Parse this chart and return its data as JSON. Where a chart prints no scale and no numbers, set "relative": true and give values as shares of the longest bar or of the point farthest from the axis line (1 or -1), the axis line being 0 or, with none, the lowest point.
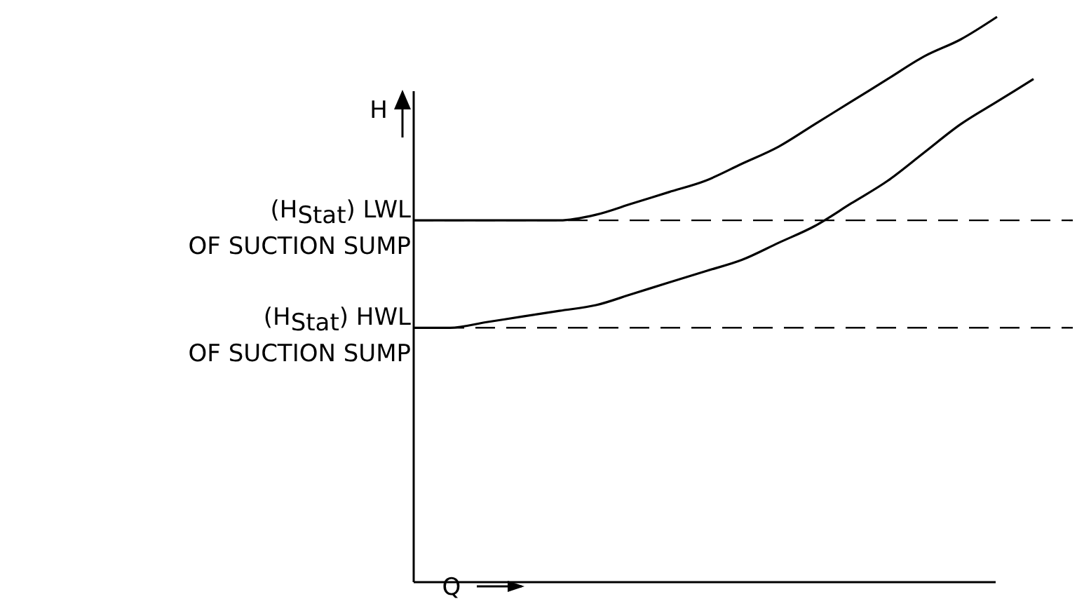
{
  "chart_data": {
    "type": "line",
    "relative": true,
    "xlabel": "Q",
    "ylabel": "H",
    "marker": "none",
    "line_style": "solid",
    "categories": [
      null,
      null,
      null,
      null,
      null,
      null,
      null,
      null,
      null,
      null,
      null,
      null,
      null,
      null,
      null,
      null,
      null,
      null
    ],
    "series": [
      {
        "color": "#000000",
        "values": [
          0.64,
          0.64,
          0.64,
          0.64,
          0.64,
          0.65,
          0.67,
          0.69,
          0.71,
          0.74,
          0.77,
          0.81,
          0.85,
          0.89,
          0.93,
          0.96,
          1.0,
          null
        ]
      },
      {
        "color": "#000000",
        "values": [
          0.45,
          0.45,
          0.46,
          0.47,
          0.48,
          0.49,
          0.51,
          0.53,
          0.55,
          0.57,
          0.6,
          0.63,
          0.67,
          0.71,
          0.76,
          0.81,
          0.85,
          0.89
        ]
      }
    ],
    "ref_lines": [
      {
        "axis": "y",
        "value": 0.64,
        "label": "(H$_{Stat}$) LWL\nOF SUCTION SUMP",
        "color": "#000000",
        "line_style": "dashed"
      },
      {
        "axis": "y",
        "value": 0.45,
        "label": "(H$_{Stat}$) HWL\nOF SUCTION SUMP",
        "color": "#000000",
        "line_style": "dashed"
      }
    ]
  }
}
